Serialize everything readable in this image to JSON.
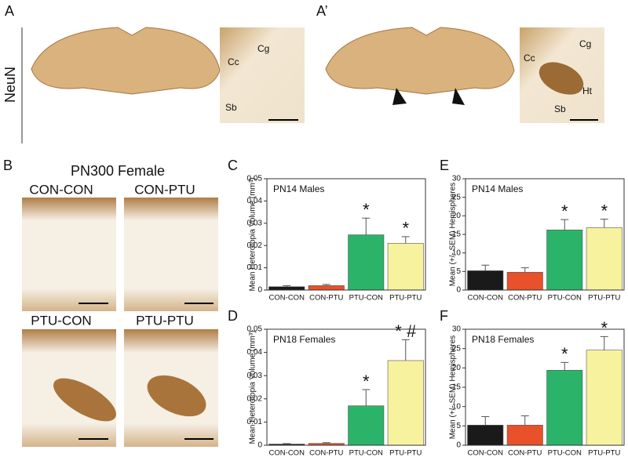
{
  "panels": {
    "A": {
      "label": "A",
      "stain": "NeuN",
      "inset": [
        "Cc",
        "Cg",
        "Sb"
      ]
    },
    "A_prime": {
      "label": "A’",
      "inset": [
        "Cc",
        "Cg",
        "Ht",
        "Sb"
      ]
    },
    "B": {
      "label": "B",
      "title": "PN300 Female",
      "images": [
        "CON-CON",
        "CON-PTU",
        "PTU-CON",
        "PTU-PTU"
      ]
    }
  },
  "chart_data": [
    {
      "type": "bar",
      "panel": "C",
      "title": "PN14 Males",
      "y_label": "Mean Heterotopia Volume (mm³)",
      "categories": [
        "CON-CON",
        "CON-PTU",
        "PTU-CON",
        "PTU-PTU"
      ],
      "values": [
        0.0015,
        0.002,
        0.0248,
        0.021
      ],
      "errors": [
        0.0005,
        0.0005,
        0.0075,
        0.003
      ],
      "annotations": [
        null,
        null,
        "*",
        "*"
      ],
      "colors": [
        "#1a1a1a",
        "#e8512a",
        "#2bb36a",
        "#f7f29e"
      ],
      "ylim": [
        0,
        0.05
      ],
      "yticks": [
        0,
        0.01,
        0.02,
        0.03,
        0.04,
        0.05
      ]
    },
    {
      "type": "bar",
      "panel": "D",
      "title": "PN18 Females",
      "y_label": "Mean Heterotopia Volume (mm³)",
      "categories": [
        "CON-CON",
        "CON-PTU",
        "PTU-CON",
        "PTU-PTU"
      ],
      "values": [
        0.0005,
        0.0008,
        0.017,
        0.0365
      ],
      "errors": [
        0.0002,
        0.0003,
        0.007,
        0.009
      ],
      "annotations": [
        null,
        null,
        "*",
        "* #"
      ],
      "colors": [
        "#1a1a1a",
        "#e8512a",
        "#2bb36a",
        "#f7f29e"
      ],
      "ylim": [
        0,
        0.05
      ],
      "yticks": [
        0,
        0.01,
        0.02,
        0.03,
        0.04,
        0.05
      ]
    },
    {
      "type": "bar",
      "panel": "E",
      "title": "PN14 Males",
      "y_label": "Mean (+/- SEM) Hemispheres",
      "categories": [
        "CON-CON",
        "CON-PTU",
        "PTU-CON",
        "PTU-PTU"
      ],
      "values": [
        5.2,
        4.8,
        16.2,
        16.8
      ],
      "errors": [
        1.5,
        1.2,
        2.8,
        2.3
      ],
      "annotations": [
        null,
        null,
        "*",
        "*"
      ],
      "colors": [
        "#1a1a1a",
        "#e8512a",
        "#2bb36a",
        "#f7f29e"
      ],
      "ylim": [
        0,
        30
      ],
      "yticks": [
        0,
        5,
        10,
        15,
        20,
        25,
        30
      ]
    },
    {
      "type": "bar",
      "panel": "F",
      "title": "PN18 Females",
      "y_label": "Mean (+/- SEM) Hemispheres",
      "categories": [
        "CON-CON",
        "CON-PTU",
        "PTU-CON",
        "PTU-PTU"
      ],
      "values": [
        5.2,
        5.2,
        19.4,
        24.6
      ],
      "errors": [
        2.2,
        2.4,
        2.0,
        3.5
      ],
      "annotations": [
        null,
        null,
        "*",
        "*"
      ],
      "colors": [
        "#1a1a1a",
        "#e8512a",
        "#2bb36a",
        "#f7f29e"
      ],
      "ylim": [
        0,
        30
      ],
      "yticks": [
        0,
        5,
        10,
        15,
        20,
        25,
        30
      ]
    }
  ]
}
